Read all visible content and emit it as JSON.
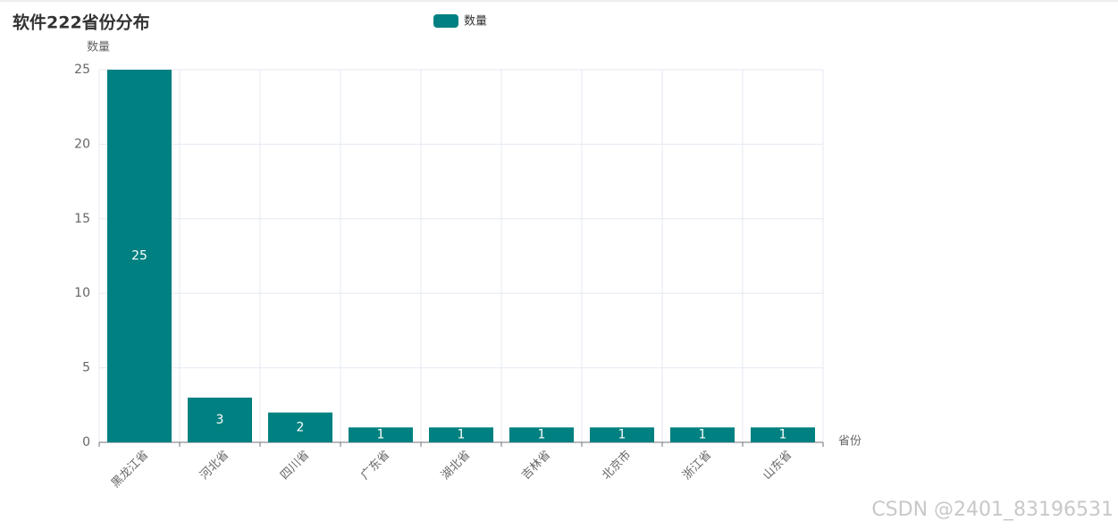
{
  "chart_data": {
    "type": "bar",
    "title": "软件222省份分布",
    "categories": [
      "黑龙江省",
      "河北省",
      "四川省",
      "广东省",
      "湖北省",
      "吉林省",
      "北京市",
      "浙江省",
      "山东省"
    ],
    "series": [
      {
        "name": "数量",
        "color": "#008080",
        "values": [
          25,
          3,
          2,
          1,
          1,
          1,
          1,
          1,
          1
        ]
      }
    ],
    "y_axis_label": "数量",
    "x_axis_label": "省份",
    "ylim": [
      0,
      25
    ],
    "yticks": [
      0,
      5,
      10,
      15,
      20,
      25
    ],
    "grid": true,
    "show_labels": true,
    "legend_position": "top"
  },
  "watermark": "CSDN @2401_83196531"
}
